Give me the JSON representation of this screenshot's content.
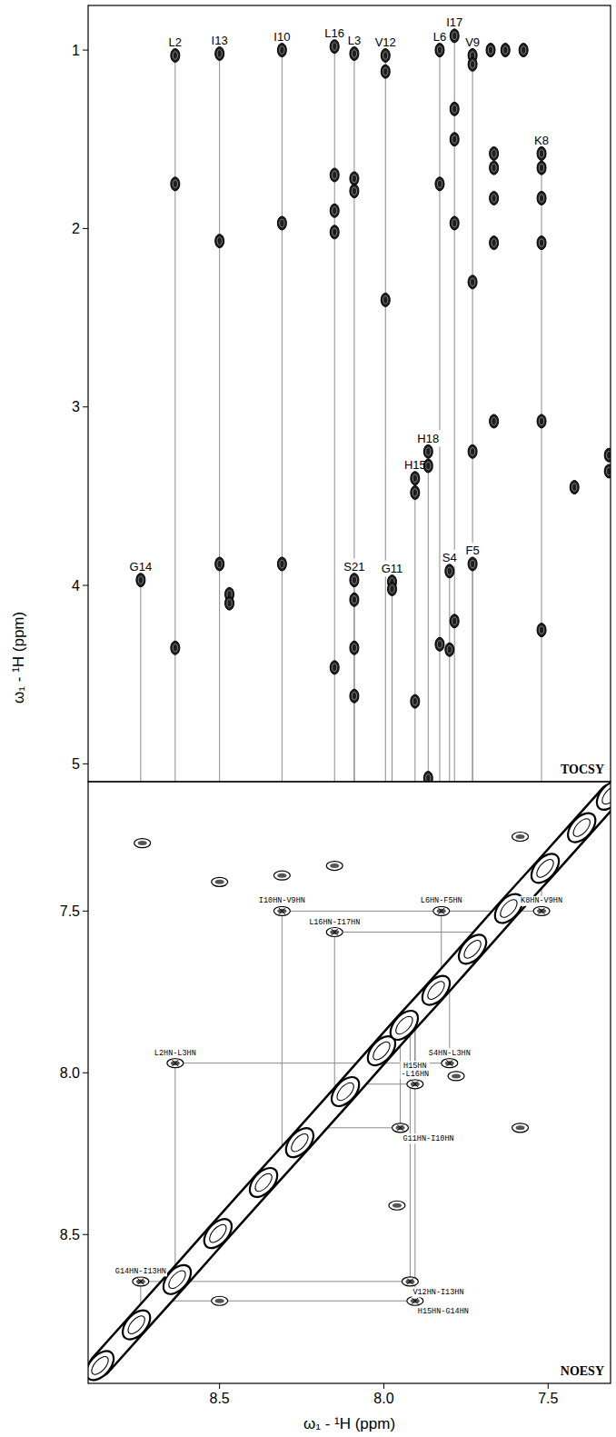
{
  "chart_data": [
    {
      "type": "tocsy",
      "title": "TOCSY",
      "y_label": "ω₁ - ¹H (ppm)",
      "xlim": [
        8.9,
        7.31
      ],
      "ylim": [
        0.75,
        5.1
      ],
      "yticks": [
        1,
        2,
        3,
        4,
        5
      ],
      "tick_labels": "y",
      "series": [
        {
          "name": "G14",
          "x": 8.74,
          "values": [
            3.97
          ]
        },
        {
          "name": "L2",
          "x": 8.635,
          "values": [
            1.03,
            1.75,
            4.35
          ]
        },
        {
          "name": "I13",
          "x": 8.5,
          "values": [
            1.02,
            2.07,
            3.88
          ]
        },
        {
          "name": "I10",
          "x": 8.31,
          "values": [
            1.0,
            1.97,
            3.88
          ]
        },
        {
          "name": "L16",
          "x": 8.15,
          "values": [
            0.98,
            1.7,
            1.9,
            2.02,
            4.46
          ]
        },
        {
          "name": "L3",
          "x": 8.09,
          "values": [
            1.02,
            1.72,
            1.79,
            4.35,
            4.62
          ]
        },
        {
          "name": "S21",
          "x": 8.09,
          "values": [
            3.97,
            4.08
          ]
        },
        {
          "name": "V12",
          "x": 7.995,
          "values": [
            1.03,
            1.12,
            2.4
          ]
        },
        {
          "name": "G11",
          "x": 7.975,
          "values": [
            3.98,
            4.02
          ]
        },
        {
          "name": "H15",
          "x": 7.905,
          "values": [
            3.4,
            3.48,
            4.65
          ]
        },
        {
          "name": "H18",
          "x": 7.865,
          "values": [
            3.25,
            3.33,
            5.08
          ]
        },
        {
          "name": "L6",
          "x": 7.83,
          "values": [
            1.0,
            1.75,
            4.33
          ]
        },
        {
          "name": "S4",
          "x": 7.8,
          "values": [
            3.92,
            4.36
          ]
        },
        {
          "name": "I17",
          "x": 7.785,
          "values": [
            0.92,
            1.33,
            1.5,
            1.97,
            4.2
          ]
        },
        {
          "name": "V9",
          "x": 7.73,
          "values": [
            1.03,
            1.08,
            2.3,
            3.25
          ]
        },
        {
          "name": "F5",
          "x": 7.73,
          "values": [
            3.88
          ]
        },
        {
          "name": "K8",
          "x": 7.52,
          "values": [
            1.58,
            1.66,
            1.83,
            2.08,
            3.08,
            4.25
          ]
        }
      ],
      "unassigned": {
        "x": [
          7.665,
          7.665,
          7.665,
          7.665,
          7.665,
          7.675,
          7.63,
          7.575,
          7.42,
          7.315,
          7.315,
          8.47,
          8.47
        ],
        "values": [
          1.58,
          1.66,
          1.83,
          2.08,
          3.08,
          1.0,
          1.0,
          1.0,
          3.45,
          3.27,
          3.36,
          4.05,
          4.1
        ]
      }
    },
    {
      "type": "noesy",
      "title": "NOESY",
      "x_label": "ω₁ - ¹H (ppm)",
      "xlim": [
        8.9,
        7.31
      ],
      "ylim": [
        7.1,
        8.96
      ],
      "xticks": [
        8.5,
        {
          "value": 8,
          "label": "8.0"
        },
        7.5
      ],
      "yticks": [
        7.5,
        {
          "value": 8,
          "label": "8.0"
        },
        8.5
      ],
      "peaks": {
        "labels": [
          "I10HN-V9HN",
          "L16HN-I17HN",
          "L6HN-F5HN",
          "K8HN-V9HN",
          "L2HN-L3HN",
          "S4HN-L3HN",
          "H15HN-L16HN",
          "G11HN-I10HN",
          "G14HN-I13HN",
          "V12HN-I13HN",
          "H15HN-G14HN"
        ],
        "x": [
          8.31,
          8.15,
          7.825,
          7.52,
          8.635,
          7.8,
          7.905,
          7.95,
          8.74,
          7.92,
          7.905
        ],
        "values": [
          7.5,
          7.565,
          7.5,
          7.5,
          7.97,
          7.97,
          8.035,
          8.17,
          8.645,
          8.645,
          8.705
        ]
      },
      "unassigned": {
        "x": [
          8.735,
          8.5,
          8.31,
          8.15,
          7.585,
          7.78,
          7.585,
          7.96,
          8.5
        ],
        "values": [
          7.29,
          7.41,
          7.39,
          7.36,
          7.27,
          8.01,
          8.17,
          8.41,
          8.705
        ]
      },
      "diagonal": {
        "x": [
          8.864,
          8.753,
          8.629,
          8.505,
          8.366,
          8.256,
          8.117,
          8.007,
          7.938,
          7.841,
          7.73,
          7.62,
          7.509,
          7.398,
          7.31
        ],
        "values": [
          8.905,
          8.779,
          8.639,
          8.497,
          8.339,
          8.216,
          8.058,
          7.932,
          7.853,
          7.745,
          7.618,
          7.492,
          7.368,
          7.242,
          7.142
        ]
      }
    }
  ]
}
